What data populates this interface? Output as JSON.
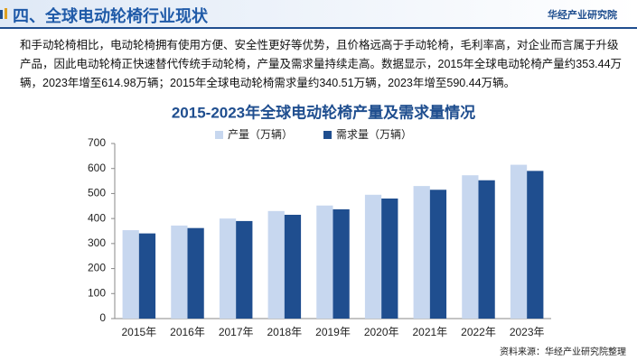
{
  "header": {
    "title": "四、全球电动轮椅行业现状",
    "brand": "华经产业研究院"
  },
  "paragraph": "和手动轮椅相比，电动轮椅拥有使用方便、安全性更好等优势，且价格远高于手动轮椅，毛利率高，对企业而言属于升级产品，因此电动轮椅正快速替代传统手动轮椅，产量及需求量持续走高。数据显示，2015年全球电动轮椅产量约353.44万辆，2023年增至614.98万辆；2015年全球电动轮椅需求量约340.51万辆，2023年增至590.44万辆。",
  "chart_data": {
    "type": "bar",
    "title": "2015-2023年全球电动轮椅产量及需求量情况",
    "categories": [
      "2015年",
      "2016年",
      "2017年",
      "2018年",
      "2019年",
      "2020年",
      "2021年",
      "2022年",
      "2023年"
    ],
    "series": [
      {
        "name": "产量（万辆）",
        "color": "#c7d7ef",
        "values": [
          353.44,
          372,
          400,
          430,
          452,
          495,
          530,
          573,
          614.98
        ]
      },
      {
        "name": "需求量（万辆）",
        "color": "#1f4e8f",
        "values": [
          340.51,
          362,
          390,
          415,
          437,
          480,
          515,
          553,
          590.44
        ]
      }
    ],
    "ylim": [
      0,
      700
    ],
    "yticks": [
      0,
      100,
      200,
      300,
      400,
      500,
      600,
      700
    ],
    "grid": false,
    "legend": "top"
  },
  "source": "资料来源：华经产业研究院整理"
}
